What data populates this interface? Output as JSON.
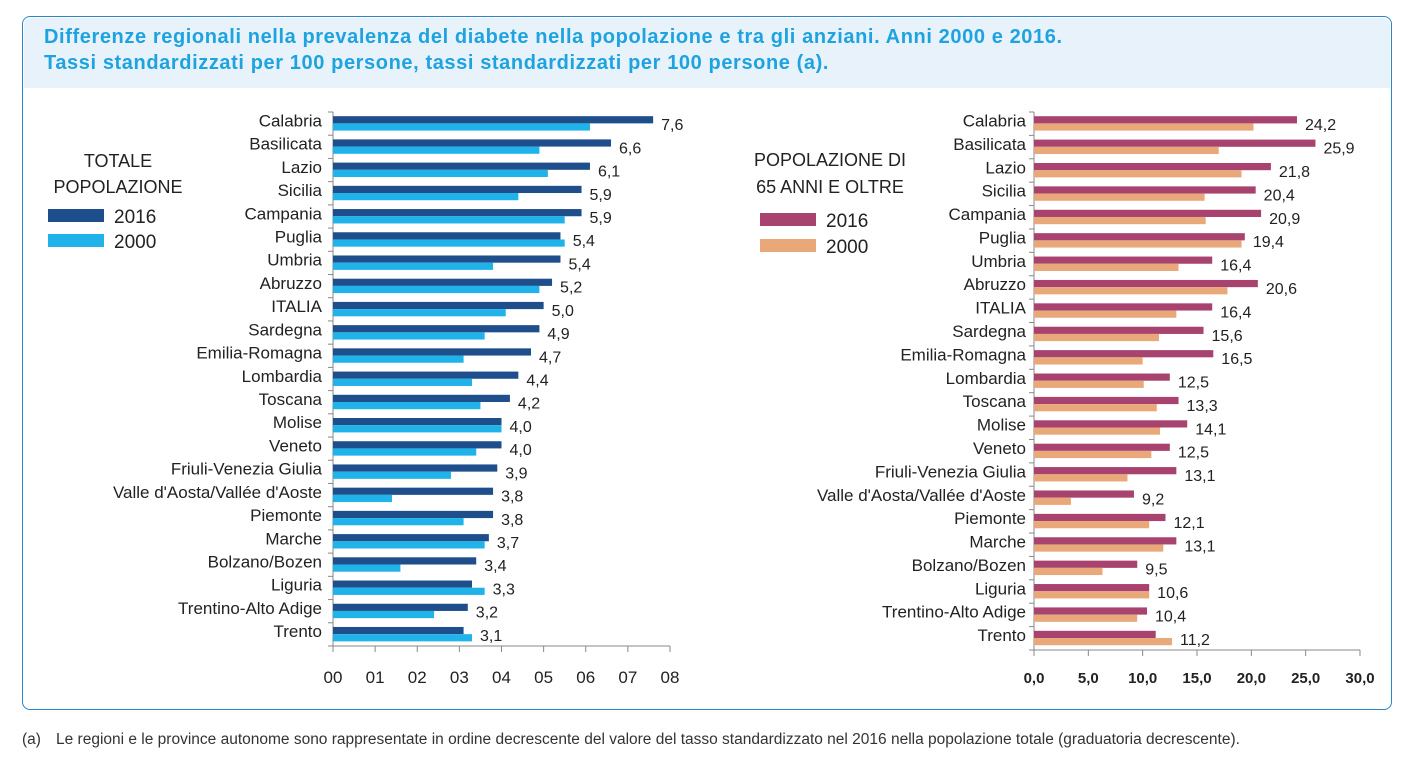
{
  "title_line1": "Differenze regionali nella prevalenza del diabete nella popolazione e tra gli anziani. Anni 2000 e 2016.",
  "title_line2": "Tassi standardizzati per 100 persone, tassi standardizzati per 100 persone (a).",
  "footnote_mark": "(a)",
  "footnote_text": "Le regioni e le province autonome sono rappresentate in ordine decrescente del valore del tasso standardizzato nel 2016 nella popolazione totale (graduatoria decrescente).",
  "chart_data": [
    {
      "type": "bar",
      "orientation": "horizontal",
      "legend_title": [
        "TOTALE",
        "POPOLAZIONE"
      ],
      "categories": [
        "Calabria",
        "Basilicata",
        "Lazio",
        "Sicilia",
        "Campania",
        "Puglia",
        "Umbria",
        "Abruzzo",
        "ITALIA",
        "Sardegna",
        "Emilia-Romagna",
        "Lombardia",
        "Toscana",
        "Molise",
        "Veneto",
        "Friuli-Venezia Giulia",
        "Valle d'Aosta/Vallée d'Aoste",
        "Piemonte",
        "Marche",
        "Bolzano/Bozen",
        "Liguria",
        "Trentino-Alto Adige",
        "Trento"
      ],
      "series": [
        {
          "name": "2016",
          "color": "#1f4e8c",
          "values": [
            7.6,
            6.6,
            6.1,
            5.9,
            5.9,
            5.4,
            5.4,
            5.2,
            5.0,
            4.9,
            4.7,
            4.4,
            4.2,
            4.0,
            4.0,
            3.9,
            3.8,
            3.8,
            3.7,
            3.4,
            3.3,
            3.2,
            3.1
          ]
        },
        {
          "name": "2000",
          "color": "#1fb3ea",
          "values": [
            6.1,
            4.9,
            5.1,
            4.4,
            5.5,
            5.5,
            3.8,
            4.9,
            4.1,
            3.6,
            3.1,
            3.3,
            3.5,
            4.0,
            3.4,
            2.8,
            1.4,
            3.1,
            3.6,
            1.6,
            3.6,
            2.4,
            3.3
          ]
        }
      ],
      "data_labels": [
        "7,6",
        "6,6",
        "6,1",
        "5,9",
        "5,9",
        "5,4",
        "5,4",
        "5,2",
        "5,0",
        "4,9",
        "4,7",
        "4,4",
        "4,2",
        "4,0",
        "4,0",
        "3,9",
        "3,8",
        "3,8",
        "3,7",
        "3,4",
        "3,3",
        "3,2",
        "3,1"
      ],
      "xlim": [
        0,
        8
      ],
      "x_tick_labels": [
        "00",
        "01",
        "02",
        "03",
        "04",
        "05",
        "06",
        "07",
        "08"
      ],
      "legend_position": "left"
    },
    {
      "type": "bar",
      "orientation": "horizontal",
      "legend_title": [
        "POPOLAZIONE DI",
        "65 ANNI E OLTRE"
      ],
      "categories": [
        "Calabria",
        "Basilicata",
        "Lazio",
        "Sicilia",
        "Campania",
        "Puglia",
        "Umbria",
        "Abruzzo",
        "ITALIA",
        "Sardegna",
        "Emilia-Romagna",
        "Lombardia",
        "Toscana",
        "Molise",
        "Veneto",
        "Friuli-Venezia Giulia",
        "Valle d'Aosta/Vallée d'Aoste",
        "Piemonte",
        "Marche",
        "Bolzano/Bozen",
        "Liguria",
        "Trentino-Alto Adige",
        "Trento"
      ],
      "series": [
        {
          "name": "2016",
          "color": "#a8426e",
          "values": [
            24.2,
            25.9,
            21.8,
            20.4,
            20.9,
            19.4,
            16.4,
            20.6,
            16.4,
            15.6,
            16.5,
            12.5,
            13.3,
            14.1,
            12.5,
            13.1,
            9.2,
            12.1,
            13.1,
            9.5,
            10.6,
            10.4,
            11.2
          ]
        },
        {
          "name": "2000",
          "color": "#e8a87a",
          "values": [
            20.2,
            17.0,
            19.1,
            15.7,
            15.8,
            19.1,
            13.3,
            17.8,
            13.1,
            11.5,
            10.0,
            10.1,
            11.3,
            11.6,
            10.8,
            8.6,
            3.4,
            10.6,
            11.9,
            6.3,
            10.6,
            9.5,
            12.7
          ]
        }
      ],
      "data_labels": [
        "24,2",
        "25,9",
        "21,8",
        "20,4",
        "20,9",
        "19,4",
        "16,4",
        "20,6",
        "16,4",
        "15,6",
        "16,5",
        "12,5",
        "13,3",
        "14,1",
        "12,5",
        "13,1",
        "9,2",
        "12,1",
        "13,1",
        "9,5",
        "10,6",
        "10,4",
        "11,2"
      ],
      "xlim": [
        0,
        30
      ],
      "x_tick_labels": [
        "0,0",
        "5,0",
        "10,0",
        "15,0",
        "20,0",
        "25,0",
        "30,0"
      ],
      "legend_position": "left"
    }
  ]
}
